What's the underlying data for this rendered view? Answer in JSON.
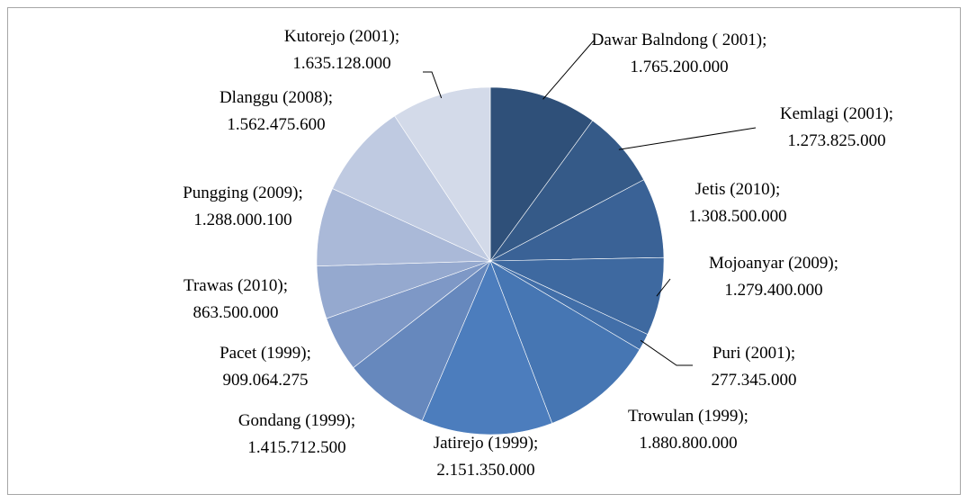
{
  "chart_data": {
    "type": "pie",
    "categories": [
      "Dawar Balndong ( 2001)",
      "Kemlagi (2001)",
      "Jetis (2010)",
      "Mojoanyar (2009)",
      "Puri (2001)",
      "Trowulan (1999)",
      "Jatirejo (1999)",
      "Gondang (1999)",
      "Pacet (1999)",
      "Trawas (2010)",
      "Pungging (2009)",
      "Dlanggu (2008)",
      "Kutorejo (2001)"
    ],
    "label_separator": ";",
    "values": [
      1765200000,
      1273825000,
      1308500000,
      1279400000,
      277345000,
      1880800000,
      2151350000,
      1415712500,
      909064275,
      863500000,
      1288000100,
      1562475600,
      1635128000
    ],
    "value_labels": [
      "1.765.200.000",
      "1.273.825.000",
      "1.308.500.000",
      "1.279.400.000",
      "277.345.000",
      "1.880.800.000",
      "2.151.350.000",
      "1.415.712.500",
      "909.064.275",
      "863.500.000",
      "1.288.000.100",
      "1.562.475.600",
      "1.635.128.000"
    ],
    "colors": [
      "#2f5079",
      "#355a88",
      "#3a6296",
      "#3e69a0",
      "#426fa9",
      "#4676b3",
      "#4c7dbd",
      "#6688bd",
      "#7e98c6",
      "#95a9cf",
      "#aab9d8",
      "#bfcae1",
      "#d3dae9"
    ]
  }
}
